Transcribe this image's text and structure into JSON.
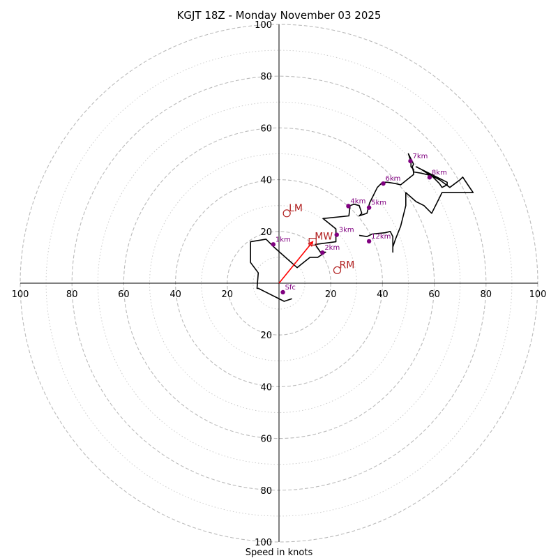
{
  "chart_data": {
    "type": "hodograph",
    "title": "KGJT 18Z - Monday November 03 2025",
    "xlabel": "Speed in knots",
    "axis_range": [
      -100,
      100
    ],
    "ring_major": [
      20,
      40,
      60,
      80,
      100
    ],
    "ring_minor": [
      10,
      30,
      50,
      70,
      90
    ],
    "x_tick_labels": [
      "100",
      "80",
      "60",
      "40",
      "20",
      "20",
      "40",
      "60",
      "80",
      "100"
    ],
    "x_tick_values": [
      -100,
      -80,
      -60,
      -40,
      -20,
      20,
      40,
      60,
      80,
      100
    ],
    "y_tick_labels": [
      "100",
      "80",
      "60",
      "40",
      "20",
      "20",
      "40",
      "60",
      "80",
      "100"
    ],
    "y_tick_values": [
      100,
      80,
      60,
      40,
      20,
      -20,
      -40,
      -60,
      -80,
      -100
    ],
    "trace": [
      [
        5,
        -6
      ],
      [
        2,
        -7
      ],
      [
        -8,
        -2
      ],
      [
        -8.5,
        -2
      ],
      [
        -8,
        4
      ],
      [
        -11,
        8
      ],
      [
        -11,
        16
      ],
      [
        -5,
        17
      ],
      [
        -2,
        14
      ],
      [
        7,
        6
      ],
      [
        12,
        10
      ],
      [
        14,
        10
      ],
      [
        15,
        10
      ],
      [
        16.5,
        11
      ],
      [
        18,
        12
      ],
      [
        16,
        12
      ],
      [
        14,
        15
      ],
      [
        22,
        16
      ],
      [
        22,
        19
      ],
      [
        22,
        21
      ],
      [
        17,
        25
      ],
      [
        27,
        26
      ],
      [
        27.5,
        30
      ],
      [
        29,
        30.5
      ],
      [
        31,
        30
      ],
      [
        32,
        27
      ],
      [
        31,
        26
      ],
      [
        34,
        27
      ],
      [
        35,
        31
      ],
      [
        38,
        37
      ],
      [
        40,
        39
      ],
      [
        42,
        39
      ],
      [
        45,
        38.5
      ],
      [
        47,
        38
      ],
      [
        52,
        42
      ],
      [
        52,
        43
      ],
      [
        51.5,
        45
      ],
      [
        52,
        46
      ],
      [
        50,
        50
      ],
      [
        51,
        47
      ],
      [
        51,
        45
      ],
      [
        52,
        44
      ],
      [
        52,
        43
      ],
      [
        55,
        42.5
      ],
      [
        59,
        41.5
      ],
      [
        62,
        38.5
      ],
      [
        63,
        37
      ],
      [
        65,
        38
      ],
      [
        65,
        39
      ],
      [
        53,
        45
      ],
      [
        55,
        44
      ],
      [
        58,
        42
      ],
      [
        62,
        40
      ],
      [
        66,
        37
      ],
      [
        70,
        40
      ],
      [
        71,
        41
      ],
      [
        73,
        38
      ],
      [
        75,
        35
      ],
      [
        72,
        35
      ],
      [
        67,
        35
      ],
      [
        63,
        35
      ],
      [
        62,
        33
      ],
      [
        59,
        27
      ],
      [
        56,
        30
      ],
      [
        53,
        31.5
      ],
      [
        49,
        35
      ],
      [
        49,
        30
      ],
      [
        47,
        22
      ],
      [
        45,
        17
      ],
      [
        44,
        14
      ],
      [
        44,
        12
      ],
      [
        44,
        18
      ],
      [
        43,
        20
      ],
      [
        41,
        19.5
      ],
      [
        36,
        19
      ],
      [
        34,
        18
      ],
      [
        31,
        18.5
      ]
    ],
    "height_markers": [
      {
        "label": "Sfc",
        "u": 1.5,
        "v": -3.5
      },
      {
        "label": "1km",
        "u": -2.2,
        "v": 15
      },
      {
        "label": "2km",
        "u": 16.8,
        "v": 11.8
      },
      {
        "label": "3km",
        "u": 22.3,
        "v": 18.7
      },
      {
        "label": "4km",
        "u": 26.8,
        "v": 29.8
      },
      {
        "label": "5km",
        "u": 34.8,
        "v": 29.2
      },
      {
        "label": "6km",
        "u": 40.3,
        "v": 38.5
      },
      {
        "label": "7km",
        "u": 50.8,
        "v": 47.2
      },
      {
        "label": "8km",
        "u": 58.2,
        "v": 40.9
      },
      {
        "label": "12km",
        "u": 34.8,
        "v": 16.2
      }
    ],
    "storm_motion": [
      {
        "label": "LM",
        "u": 3,
        "v": 27,
        "marker": "circle"
      },
      {
        "label": "MW",
        "u": 13,
        "v": 16,
        "marker": "square"
      },
      {
        "label": "RM",
        "u": 22.5,
        "v": 5,
        "marker": "circle"
      }
    ],
    "mean_wind_vector": {
      "u": 13,
      "v": 16
    }
  },
  "colors": {
    "trace": "#000000",
    "markers": "#800080",
    "storm_motion": "#b22222",
    "vector": "#ff0000",
    "ring_major": "#bbbbbb",
    "ring_minor": "#cccccc"
  }
}
